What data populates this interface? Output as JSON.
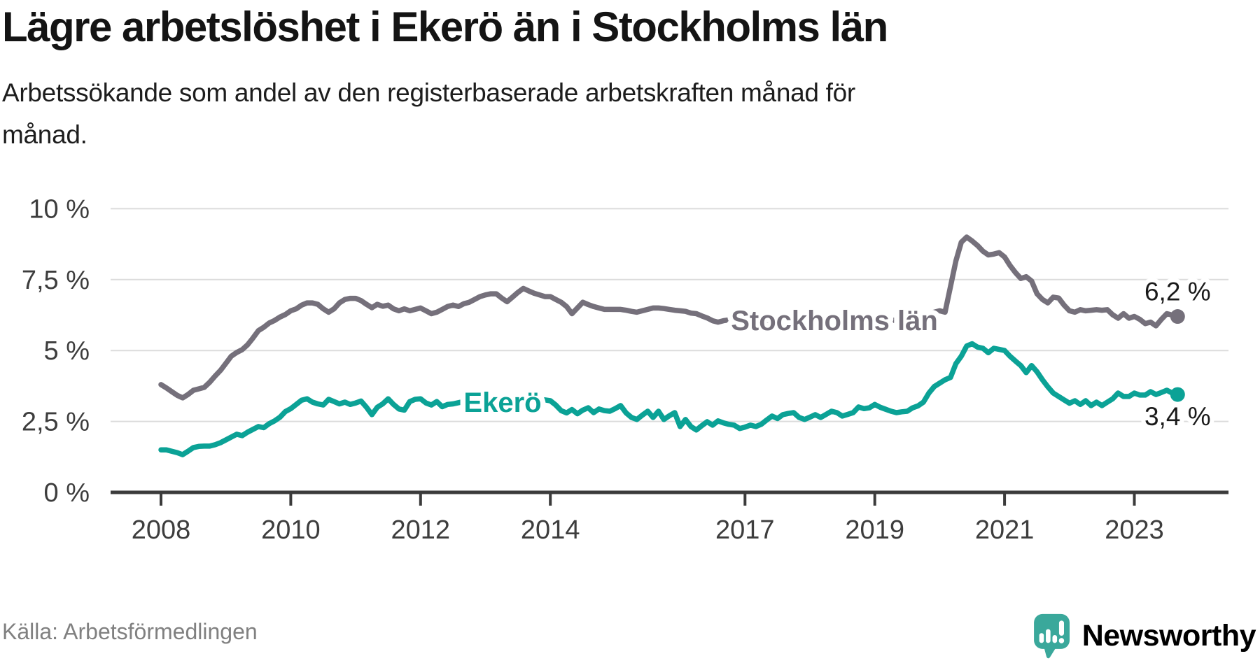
{
  "header": {
    "title": "Lägre arbetslöshet i Ekerö än i Stockholms län",
    "subtitle_line1": "Arbetssökande som andel av den registerbaserade arbetskraften månad för",
    "subtitle_line2": "månad."
  },
  "footer": {
    "source": "Källa: Arbetsförmedlingen",
    "brand": "Newsworthy",
    "brand_color": "#4C9B94",
    "brand_icon": "newsworthy-speech-bubble-bar-chart-icon",
    "brand_icon_color": "#3AA89B"
  },
  "chart_data": {
    "type": "line",
    "title": "Lägre arbetslöshet i Ekerö än i Stockholms län",
    "x_start": "2008-01",
    "x_end": "2023-09",
    "x_interval": "month",
    "x_ticks": [
      2008,
      2010,
      2012,
      2014,
      2017,
      2019,
      2021,
      2023
    ],
    "y_ticks": [
      {
        "value": 0,
        "label": "0 %"
      },
      {
        "value": 2.5,
        "label": "2,5 %"
      },
      {
        "value": 5,
        "label": "5 %"
      },
      {
        "value": 7.5,
        "label": "7,5 %"
      },
      {
        "value": 10,
        "label": "10 %"
      }
    ],
    "ylim": [
      0,
      10
    ],
    "grid": "horizontal",
    "legend": "inline-labels",
    "colors": {
      "grid": "#dcdcdc",
      "axis": "#3b3b3b",
      "tick_text": "#3d3d3d",
      "value_label_text": "#1a1a1a"
    },
    "series": [
      {
        "name": "Stockholms län",
        "color": "#75707B",
        "end_label": "6,2 %",
        "last_value": 6.2,
        "values": [
          3.8,
          3.68,
          3.55,
          3.42,
          3.33,
          3.45,
          3.6,
          3.65,
          3.7,
          3.88,
          4.1,
          4.3,
          4.55,
          4.8,
          4.93,
          5.03,
          5.2,
          5.44,
          5.7,
          5.82,
          5.97,
          6.06,
          6.18,
          6.27,
          6.4,
          6.47,
          6.6,
          6.68,
          6.68,
          6.63,
          6.47,
          6.35,
          6.47,
          6.68,
          6.8,
          6.84,
          6.84,
          6.76,
          6.63,
          6.51,
          6.63,
          6.56,
          6.6,
          6.47,
          6.4,
          6.47,
          6.4,
          6.45,
          6.5,
          6.4,
          6.3,
          6.35,
          6.45,
          6.55,
          6.6,
          6.55,
          6.65,
          6.7,
          6.8,
          6.9,
          6.96,
          7.0,
          7.0,
          6.85,
          6.72,
          6.88,
          7.05,
          7.19,
          7.1,
          7.02,
          6.96,
          6.9,
          6.9,
          6.8,
          6.7,
          6.55,
          6.3,
          6.5,
          6.7,
          6.62,
          6.55,
          6.5,
          6.45,
          6.45,
          6.45,
          6.45,
          6.42,
          6.38,
          6.35,
          6.4,
          6.45,
          6.5,
          6.5,
          6.48,
          6.45,
          6.42,
          6.4,
          6.38,
          6.32,
          6.3,
          6.22,
          6.15,
          6.05,
          6.0,
          6.05,
          6.08,
          6.05,
          6.02,
          6.0,
          5.98,
          5.95,
          5.92,
          5.9,
          5.95,
          6.0,
          5.98,
          5.95,
          5.92,
          5.9,
          5.9,
          5.88,
          5.86,
          5.84,
          5.82,
          5.8,
          5.84,
          5.88,
          5.86,
          5.84,
          5.86,
          5.9,
          5.95,
          6.0,
          6.0,
          6.02,
          6.05,
          6.08,
          6.1,
          6.14,
          6.18,
          6.22,
          6.26,
          6.3,
          6.35,
          6.4,
          6.35,
          7.26,
          8.16,
          8.82,
          9.0,
          8.86,
          8.7,
          8.5,
          8.37,
          8.4,
          8.45,
          8.3,
          8.0,
          7.75,
          7.54,
          7.6,
          7.45,
          7.0,
          6.8,
          6.68,
          6.88,
          6.85,
          6.6,
          6.4,
          6.35,
          6.44,
          6.4,
          6.42,
          6.44,
          6.42,
          6.44,
          6.26,
          6.14,
          6.3,
          6.14,
          6.2,
          6.1,
          5.95,
          6.0,
          5.87,
          6.1,
          6.3,
          6.25,
          6.2
        ]
      },
      {
        "name": "Ekerö",
        "color": "#0BA296",
        "end_label": "3,4 %",
        "last_value": 3.4,
        "values": [
          1.5,
          1.5,
          1.45,
          1.4,
          1.33,
          1.45,
          1.58,
          1.62,
          1.63,
          1.63,
          1.68,
          1.75,
          1.85,
          1.95,
          2.05,
          2.0,
          2.12,
          2.22,
          2.32,
          2.28,
          2.42,
          2.52,
          2.65,
          2.85,
          2.95,
          3.1,
          3.25,
          3.3,
          3.18,
          3.12,
          3.08,
          3.28,
          3.2,
          3.12,
          3.18,
          3.1,
          3.15,
          3.22,
          3.0,
          2.74,
          3.0,
          3.12,
          3.3,
          3.1,
          2.94,
          2.9,
          3.2,
          3.28,
          3.3,
          3.15,
          3.08,
          3.2,
          3.02,
          3.1,
          3.12,
          3.16,
          3.2,
          3.12,
          3.16,
          3.2,
          3.22,
          3.26,
          3.16,
          3.22,
          3.26,
          3.2,
          3.16,
          3.22,
          3.26,
          3.22,
          3.24,
          3.26,
          3.23,
          3.08,
          2.88,
          2.8,
          2.92,
          2.77,
          2.9,
          2.98,
          2.81,
          2.94,
          2.88,
          2.86,
          2.95,
          3.06,
          2.8,
          2.64,
          2.57,
          2.72,
          2.86,
          2.64,
          2.86,
          2.57,
          2.7,
          2.81,
          2.32,
          2.57,
          2.32,
          2.2,
          2.35,
          2.49,
          2.37,
          2.52,
          2.45,
          2.4,
          2.37,
          2.25,
          2.3,
          2.37,
          2.32,
          2.4,
          2.55,
          2.69,
          2.6,
          2.74,
          2.78,
          2.81,
          2.64,
          2.57,
          2.65,
          2.74,
          2.64,
          2.75,
          2.86,
          2.81,
          2.69,
          2.75,
          2.81,
          3.01,
          2.95,
          2.98,
          3.1,
          3.0,
          2.93,
          2.86,
          2.81,
          2.84,
          2.86,
          2.98,
          3.05,
          3.18,
          3.5,
          3.73,
          3.85,
          3.97,
          4.05,
          4.54,
          4.8,
          5.16,
          5.24,
          5.12,
          5.08,
          4.92,
          5.08,
          5.04,
          5.0,
          4.8,
          4.63,
          4.47,
          4.22,
          4.47,
          4.25,
          3.97,
          3.72,
          3.5,
          3.38,
          3.26,
          3.14,
          3.23,
          3.1,
          3.23,
          3.06,
          3.18,
          3.06,
          3.18,
          3.3,
          3.5,
          3.38,
          3.38,
          3.5,
          3.43,
          3.43,
          3.55,
          3.45,
          3.52,
          3.6,
          3.5,
          3.45
        ]
      }
    ]
  }
}
